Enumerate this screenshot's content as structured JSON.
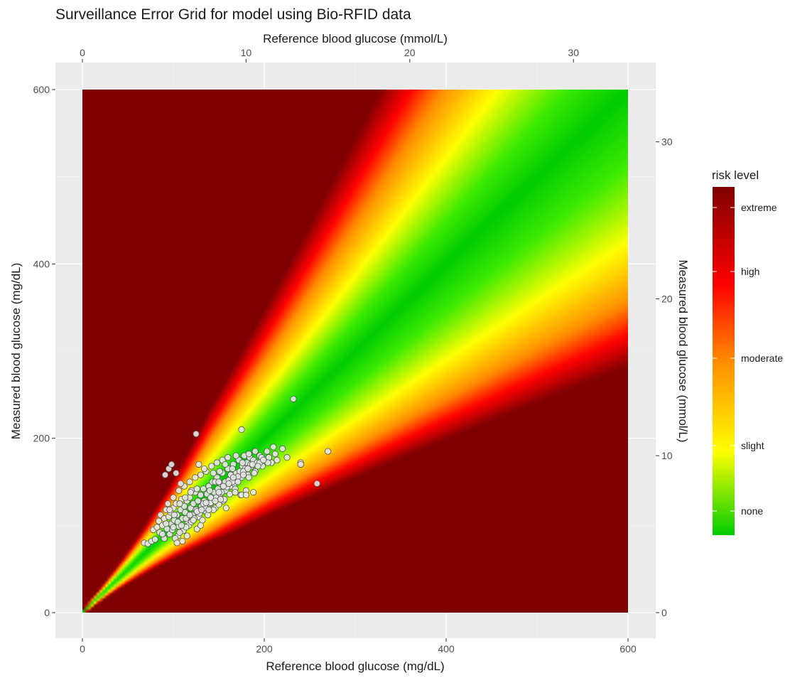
{
  "chart_data": {
    "type": "scatter",
    "title": "Surveillance Error Grid for model using Bio-RFID data",
    "xlabel": "Reference blood glucose (mg/dL)",
    "ylabel": "Measured blood glucose (mg/dL)",
    "x2label": "Reference blood glucose (mmol/L)",
    "y2label": "Measured blood glucose (mmol/L)",
    "xlim": [
      0,
      600
    ],
    "ylim": [
      0,
      600
    ],
    "x_ticks": [
      "0",
      "200",
      "400",
      "600"
    ],
    "y_ticks": [
      "0",
      "200",
      "400",
      "600"
    ],
    "x2_ticks": [
      "0",
      "10",
      "20",
      "30"
    ],
    "y2_ticks": [
      "0",
      "10",
      "20",
      "30"
    ],
    "x2_tick_values_mmol": [
      0,
      10,
      20,
      30
    ],
    "y2_tick_values_mmol": [
      0,
      10,
      20,
      30
    ],
    "mgdl_per_mmol": 18.0,
    "grid": true,
    "legend": {
      "title": "risk level",
      "position": "right",
      "labels": [
        "extreme",
        "high",
        "moderate",
        "slight",
        "none"
      ],
      "colors": [
        "#7f0000",
        "#ff0000",
        "#ff8c00",
        "#ffff00",
        "#00cc00"
      ]
    },
    "background_color": "#ebebeb",
    "point_color": "#e6e6e6",
    "point_stroke": "#555555",
    "points": [
      [
        68,
        80
      ],
      [
        72,
        79
      ],
      [
        76,
        82
      ],
      [
        80,
        84
      ],
      [
        78,
        95
      ],
      [
        82,
        98
      ],
      [
        85,
        92
      ],
      [
        84,
        105
      ],
      [
        88,
        100
      ],
      [
        86,
        112
      ],
      [
        90,
        108
      ],
      [
        92,
        118
      ],
      [
        95,
        110
      ],
      [
        93,
        96
      ],
      [
        98,
        102
      ],
      [
        97,
        115
      ],
      [
        100,
        120
      ],
      [
        101,
        106
      ],
      [
        103,
        125
      ],
      [
        104,
        112
      ],
      [
        106,
        99
      ],
      [
        108,
        118
      ],
      [
        109,
        130
      ],
      [
        110,
        108
      ],
      [
        112,
        122
      ],
      [
        113,
        115
      ],
      [
        115,
        128
      ],
      [
        116,
        104
      ],
      [
        118,
        132
      ],
      [
        119,
        120
      ],
      [
        121,
        112
      ],
      [
        122,
        125
      ],
      [
        124,
        138
      ],
      [
        125,
        118
      ],
      [
        127,
        128
      ],
      [
        128,
        110
      ],
      [
        130,
        135
      ],
      [
        131,
        122
      ],
      [
        133,
        142
      ],
      [
        134,
        128
      ],
      [
        136,
        116
      ],
      [
        137,
        136
      ],
      [
        139,
        145
      ],
      [
        140,
        125
      ],
      [
        142,
        132
      ],
      [
        143,
        150
      ],
      [
        145,
        138
      ],
      [
        146,
        120
      ],
      [
        148,
        155
      ],
      [
        149,
        142
      ],
      [
        151,
        135
      ],
      [
        152,
        148
      ],
      [
        154,
        160
      ],
      [
        155,
        128
      ],
      [
        157,
        150
      ],
      [
        158,
        140
      ],
      [
        160,
        165
      ],
      [
        161,
        152
      ],
      [
        163,
        145
      ],
      [
        164,
        158
      ],
      [
        166,
        170
      ],
      [
        167,
        148
      ],
      [
        169,
        160
      ],
      [
        170,
        152
      ],
      [
        172,
        175
      ],
      [
        173,
        162
      ],
      [
        175,
        155
      ],
      [
        176,
        168
      ],
      [
        178,
        180
      ],
      [
        179,
        165
      ],
      [
        181,
        172
      ],
      [
        182,
        158
      ],
      [
        184,
        178
      ],
      [
        186,
        168
      ],
      [
        188,
        175
      ],
      [
        190,
        162
      ],
      [
        192,
        172
      ],
      [
        195,
        180
      ],
      [
        198,
        168
      ],
      [
        200,
        176
      ],
      [
        203,
        185
      ],
      [
        205,
        178
      ],
      [
        208,
        172
      ],
      [
        210,
        190
      ],
      [
        212,
        182
      ],
      [
        214,
        175
      ],
      [
        96,
        90
      ],
      [
        99,
        95
      ],
      [
        105,
        88
      ],
      [
        111,
        94
      ],
      [
        117,
        100
      ],
      [
        123,
        108
      ],
      [
        129,
        114
      ],
      [
        135,
        120
      ],
      [
        141,
        126
      ],
      [
        147,
        132
      ],
      [
        153,
        138
      ],
      [
        159,
        144
      ],
      [
        165,
        150
      ],
      [
        171,
        156
      ],
      [
        177,
        162
      ],
      [
        183,
        155
      ],
      [
        189,
        160
      ],
      [
        102,
        85
      ],
      [
        107,
        92
      ],
      [
        114,
        98
      ],
      [
        120,
        104
      ],
      [
        126,
        96
      ],
      [
        132,
        106
      ],
      [
        138,
        112
      ],
      [
        144,
        118
      ],
      [
        150,
        124
      ],
      [
        156,
        130
      ],
      [
        162,
        136
      ],
      [
        168,
        142
      ],
      [
        174,
        135
      ],
      [
        180,
        140
      ],
      [
        94,
        125
      ],
      [
        100,
        132
      ],
      [
        106,
        140
      ],
      [
        112,
        145
      ],
      [
        118,
        150
      ],
      [
        124,
        155
      ],
      [
        130,
        158
      ],
      [
        136,
        162
      ],
      [
        142,
        168
      ],
      [
        148,
        172
      ],
      [
        154,
        175
      ],
      [
        160,
        178
      ],
      [
        95,
        165
      ],
      [
        98,
        170
      ],
      [
        91,
        158
      ],
      [
        103,
        160
      ],
      [
        108,
        148
      ],
      [
        125,
        205
      ],
      [
        175,
        210
      ],
      [
        232,
        245
      ],
      [
        220,
        188
      ],
      [
        225,
        178
      ],
      [
        240,
        172
      ],
      [
        258,
        148
      ],
      [
        270,
        185
      ],
      [
        240,
        170
      ],
      [
        188,
        138
      ],
      [
        175,
        135
      ],
      [
        180,
        135
      ],
      [
        168,
        138
      ],
      [
        120,
        140
      ],
      [
        140,
        140
      ],
      [
        152,
        130
      ],
      [
        158,
        120
      ],
      [
        130,
        100
      ],
      [
        115,
        88
      ],
      [
        110,
        82
      ],
      [
        104,
        80
      ],
      [
        90,
        85
      ],
      [
        88,
        90
      ],
      [
        92,
        102
      ],
      [
        96,
        118
      ],
      [
        101,
        112
      ],
      [
        107,
        125
      ],
      [
        113,
        132
      ],
      [
        119,
        138
      ],
      [
        126,
        142
      ],
      [
        133,
        125
      ],
      [
        139,
        118
      ],
      [
        146,
        150
      ],
      [
        151,
        162
      ],
      [
        157,
        170
      ],
      [
        163,
        158
      ],
      [
        169,
        180
      ],
      [
        176,
        172
      ],
      [
        183,
        182
      ],
      [
        190,
        185
      ],
      [
        197,
        178
      ],
      [
        204,
        172
      ],
      [
        128,
        170
      ],
      [
        134,
        165
      ],
      [
        144,
        160
      ],
      [
        150,
        150
      ],
      [
        165,
        165
      ],
      [
        185,
        170
      ],
      [
        195,
        172
      ],
      [
        100,
        98
      ],
      [
        105,
        104
      ],
      [
        109,
        100
      ],
      [
        114,
        108
      ],
      [
        118,
        112
      ],
      [
        122,
        106
      ],
      [
        126,
        116
      ],
      [
        131,
        118
      ],
      [
        136,
        126
      ],
      [
        141,
        132
      ],
      [
        146,
        128
      ],
      [
        150,
        138
      ],
      [
        155,
        145
      ],
      [
        161,
        148
      ],
      [
        166,
        155
      ],
      [
        171,
        150
      ],
      [
        177,
        158
      ],
      [
        182,
        165
      ],
      [
        187,
        170
      ],
      [
        193,
        168
      ],
      [
        199,
        175
      ]
    ]
  }
}
